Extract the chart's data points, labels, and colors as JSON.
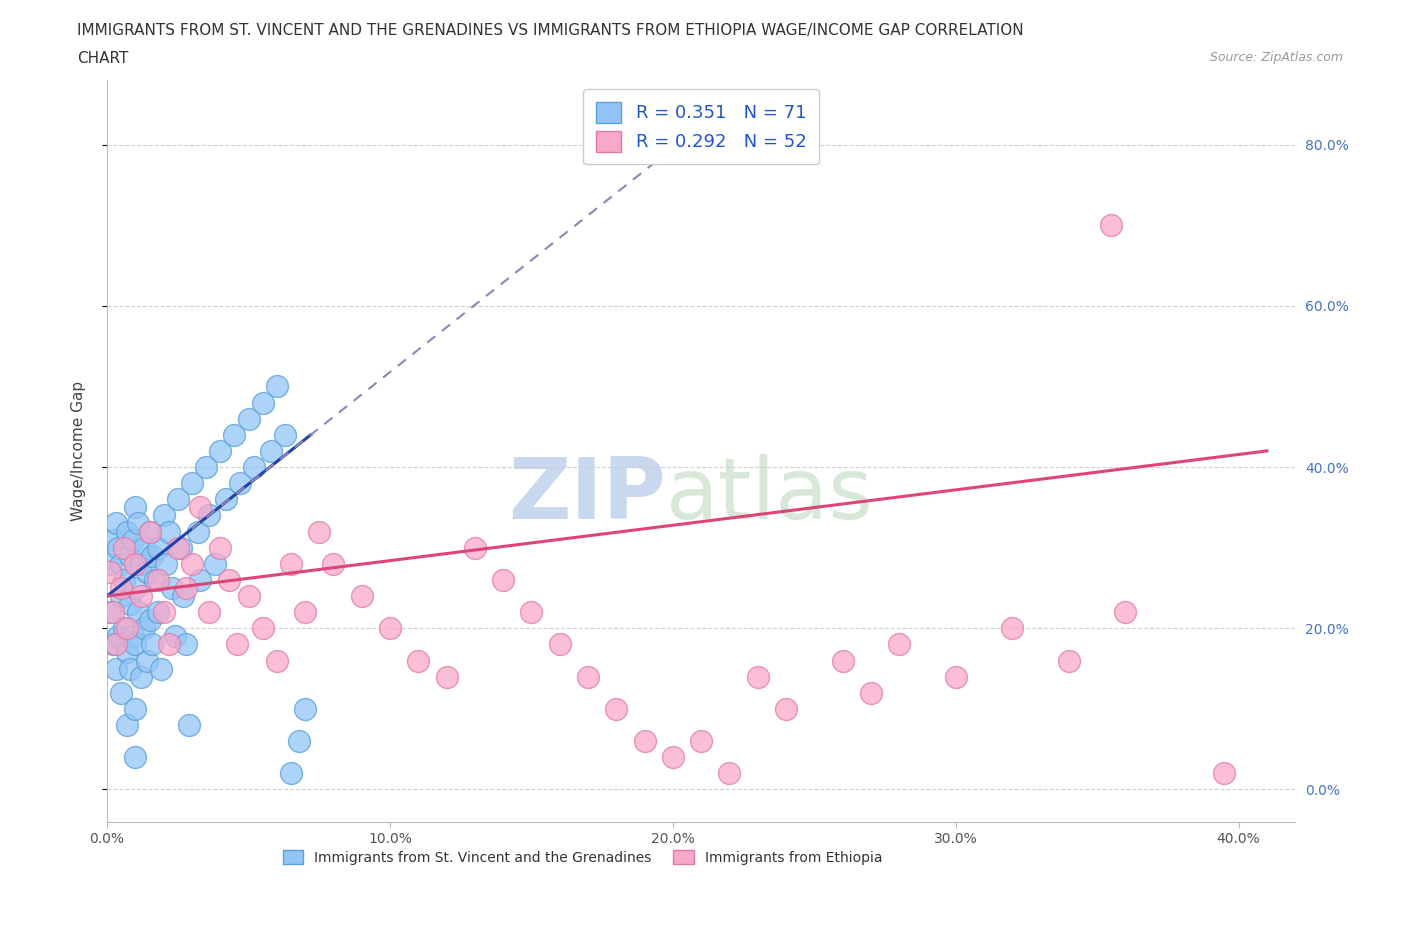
{
  "title_line1": "IMMIGRANTS FROM ST. VINCENT AND THE GRENADINES VS IMMIGRANTS FROM ETHIOPIA WAGE/INCOME GAP CORRELATION",
  "title_line2": "CHART",
  "source_text": "Source: ZipAtlas.com",
  "ylabel": "Wage/Income Gap",
  "xlabel_blue": "Immigrants from St. Vincent and the Grenadines",
  "xlabel_pink": "Immigrants from Ethiopia",
  "R_blue": 0.351,
  "N_blue": 71,
  "R_pink": 0.292,
  "N_pink": 52,
  "blue_color": "#92C5F7",
  "blue_edge": "#5a9fd4",
  "pink_color": "#F9A8C9",
  "pink_edge": "#e07aaa",
  "blue_line_color": "#2244aa",
  "pink_line_color": "#dd4477",
  "watermark_color": "#d8e4f0",
  "xlim": [
    0.0,
    0.42
  ],
  "ylim": [
    -0.04,
    0.88
  ],
  "xticks": [
    0.0,
    0.1,
    0.2,
    0.3,
    0.4
  ],
  "yticks": [
    0.0,
    0.2,
    0.4,
    0.6,
    0.8
  ],
  "blue_scatter_x": [
    0.001,
    0.001,
    0.002,
    0.002,
    0.003,
    0.003,
    0.004,
    0.004,
    0.005,
    0.005,
    0.005,
    0.006,
    0.006,
    0.007,
    0.007,
    0.007,
    0.008,
    0.008,
    0.008,
    0.009,
    0.009,
    0.01,
    0.01,
    0.01,
    0.01,
    0.01,
    0.011,
    0.011,
    0.012,
    0.012,
    0.013,
    0.013,
    0.014,
    0.014,
    0.015,
    0.015,
    0.016,
    0.016,
    0.017,
    0.018,
    0.018,
    0.019,
    0.02,
    0.021,
    0.022,
    0.023,
    0.024,
    0.025,
    0.026,
    0.027,
    0.028,
    0.029,
    0.03,
    0.032,
    0.033,
    0.035,
    0.036,
    0.038,
    0.04,
    0.042,
    0.045,
    0.047,
    0.05,
    0.052,
    0.055,
    0.058,
    0.06,
    0.063,
    0.065,
    0.068,
    0.07
  ],
  "blue_scatter_y": [
    0.28,
    0.22,
    0.31,
    0.18,
    0.33,
    0.15,
    0.3,
    0.19,
    0.28,
    0.24,
    0.12,
    0.26,
    0.2,
    0.32,
    0.17,
    0.08,
    0.29,
    0.23,
    0.15,
    0.31,
    0.19,
    0.35,
    0.25,
    0.18,
    0.1,
    0.04,
    0.33,
    0.22,
    0.28,
    0.14,
    0.3,
    0.2,
    0.27,
    0.16,
    0.32,
    0.21,
    0.29,
    0.18,
    0.26,
    0.3,
    0.22,
    0.15,
    0.34,
    0.28,
    0.32,
    0.25,
    0.19,
    0.36,
    0.3,
    0.24,
    0.18,
    0.08,
    0.38,
    0.32,
    0.26,
    0.4,
    0.34,
    0.28,
    0.42,
    0.36,
    0.44,
    0.38,
    0.46,
    0.4,
    0.48,
    0.42,
    0.5,
    0.44,
    0.02,
    0.06,
    0.1
  ],
  "pink_scatter_x": [
    0.001,
    0.002,
    0.003,
    0.005,
    0.006,
    0.007,
    0.01,
    0.012,
    0.015,
    0.018,
    0.02,
    0.022,
    0.025,
    0.028,
    0.03,
    0.033,
    0.036,
    0.04,
    0.043,
    0.046,
    0.05,
    0.055,
    0.06,
    0.065,
    0.07,
    0.075,
    0.08,
    0.09,
    0.1,
    0.11,
    0.12,
    0.13,
    0.14,
    0.15,
    0.16,
    0.17,
    0.18,
    0.19,
    0.2,
    0.21,
    0.22,
    0.23,
    0.24,
    0.26,
    0.27,
    0.28,
    0.3,
    0.32,
    0.34,
    0.36,
    0.395,
    0.355
  ],
  "pink_scatter_y": [
    0.27,
    0.22,
    0.18,
    0.25,
    0.3,
    0.2,
    0.28,
    0.24,
    0.32,
    0.26,
    0.22,
    0.18,
    0.3,
    0.25,
    0.28,
    0.35,
    0.22,
    0.3,
    0.26,
    0.18,
    0.24,
    0.2,
    0.16,
    0.28,
    0.22,
    0.32,
    0.28,
    0.24,
    0.2,
    0.16,
    0.14,
    0.3,
    0.26,
    0.22,
    0.18,
    0.14,
    0.1,
    0.06,
    0.04,
    0.06,
    0.02,
    0.14,
    0.1,
    0.16,
    0.12,
    0.18,
    0.14,
    0.2,
    0.16,
    0.22,
    0.02,
    0.7
  ],
  "pink_line_x": [
    0.0,
    0.41
  ],
  "pink_line_y": [
    0.24,
    0.42
  ],
  "blue_line_x": [
    0.0,
    0.072
  ],
  "blue_line_y": [
    0.24,
    0.44
  ]
}
